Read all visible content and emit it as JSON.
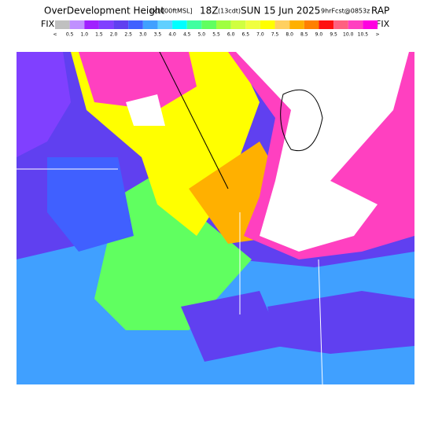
{
  "header": {
    "title": "OverDevelopment Height",
    "units": "[x1000ftMSL]",
    "time": "18Z",
    "local_time": "(13cdt)",
    "date": "SUN 15 Jun 2025",
    "forecast": "9hrFcst@0853z",
    "model": "RAP",
    "left_label": "FIX",
    "right_label": "FIX"
  },
  "legend": {
    "labels": [
      "<",
      "0.5",
      "1.0",
      "1.5",
      "2.0",
      "2.5",
      "3.0",
      "3.5",
      "4.0",
      "4.5",
      "5.0",
      "5.5",
      "6.0",
      "6.5",
      "7.0",
      "7.5",
      "8.0",
      "8.5",
      "9.0",
      "9.5",
      "10.0",
      "10.5",
      ">"
    ],
    "colors": [
      "#c0c0c0",
      "#c090ff",
      "#a020ff",
      "#8040ff",
      "#6040f0",
      "#4060ff",
      "#40a0ff",
      "#60d0ff",
      "#00ffff",
      "#40ffa0",
      "#60ff60",
      "#a0ff40",
      "#d0ff40",
      "#f0ff40",
      "#ffff00",
      "#ffd060",
      "#ffb000",
      "#ff8000",
      "#ff1010",
      "#ff6080",
      "#ff40c0",
      "#ff00e0"
    ]
  }
}
